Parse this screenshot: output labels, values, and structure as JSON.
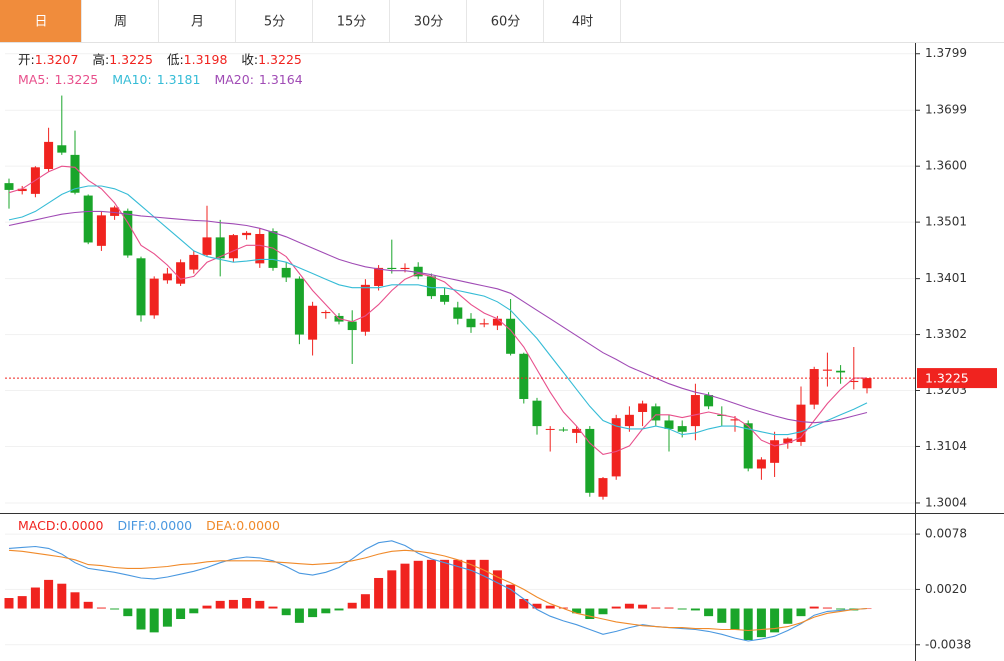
{
  "tabs": [
    "日",
    "周",
    "月",
    "5分",
    "15分",
    "30分",
    "60分",
    "4时"
  ],
  "selected_tab": 0,
  "chart_data": [
    {
      "type": "candlestick",
      "ohlc_legend": [
        {
          "label": "开:",
          "value": 1.3207
        },
        {
          "label": "高:",
          "value": 1.3225
        },
        {
          "label": "低:",
          "value": 1.3198
        },
        {
          "label": "收:",
          "value": 1.3225
        }
      ],
      "open": [
        1.357,
        1.3556,
        1.3551,
        1.3595,
        1.3637,
        1.362,
        1.3548,
        1.3459,
        1.3512,
        1.3521,
        1.3437,
        1.3336,
        1.3398,
        1.3392,
        1.3417,
        1.3443,
        1.3474,
        1.3437,
        1.3478,
        1.3428,
        1.3485,
        1.342,
        1.3401,
        1.3293,
        1.334,
        1.3335,
        1.3325,
        1.3307,
        1.3388,
        1.342,
        1.3418,
        1.3422,
        1.3405,
        1.3372,
        1.335,
        1.333,
        1.332,
        1.3318,
        1.333,
        1.3268,
        1.3185,
        1.3135,
        1.3134,
        1.3128,
        1.3135,
        1.3015,
        1.3051,
        1.314,
        1.3165,
        1.3175,
        1.315,
        1.314,
        1.314,
        1.3195,
        1.316,
        1.315,
        1.3145,
        1.3065,
        1.3075,
        1.311,
        1.3112,
        1.3178,
        1.3238,
        1.3238,
        1.3218,
        1.3207
      ],
      "high": [
        1.3578,
        1.3565,
        1.36,
        1.3668,
        1.3725,
        1.3663,
        1.355,
        1.352,
        1.353,
        1.3525,
        1.344,
        1.3405,
        1.342,
        1.3435,
        1.345,
        1.353,
        1.3505,
        1.348,
        1.3485,
        1.349,
        1.349,
        1.343,
        1.3405,
        1.336,
        1.3345,
        1.334,
        1.3345,
        1.34,
        1.3425,
        1.347,
        1.3428,
        1.343,
        1.341,
        1.3385,
        1.336,
        1.334,
        1.333,
        1.3335,
        1.3365,
        1.327,
        1.319,
        1.314,
        1.3138,
        1.314,
        1.314,
        1.305,
        1.316,
        1.3175,
        1.3185,
        1.318,
        1.316,
        1.315,
        1.3215,
        1.32,
        1.3175,
        1.3158,
        1.315,
        1.3085,
        1.313,
        1.312,
        1.321,
        1.3245,
        1.327,
        1.3248,
        1.328,
        1.3225
      ],
      "low": [
        1.3525,
        1.355,
        1.3545,
        1.359,
        1.362,
        1.355,
        1.3462,
        1.345,
        1.3505,
        1.3438,
        1.3325,
        1.333,
        1.3392,
        1.3388,
        1.341,
        1.344,
        1.3405,
        1.343,
        1.347,
        1.342,
        1.3415,
        1.3395,
        1.3285,
        1.3265,
        1.333,
        1.332,
        1.325,
        1.33,
        1.338,
        1.341,
        1.3412,
        1.34,
        1.3365,
        1.3355,
        1.332,
        1.3305,
        1.3315,
        1.331,
        1.3265,
        1.318,
        1.3125,
        1.3095,
        1.313,
        1.311,
        1.3015,
        1.301,
        1.3045,
        1.313,
        1.314,
        1.314,
        1.3095,
        1.312,
        1.3115,
        1.317,
        1.314,
        1.313,
        1.306,
        1.3045,
        1.305,
        1.31,
        1.3105,
        1.317,
        1.321,
        1.3215,
        1.3205,
        1.3198
      ],
      "close": [
        1.3558,
        1.356,
        1.3598,
        1.3643,
        1.3624,
        1.3553,
        1.3465,
        1.3513,
        1.3527,
        1.3442,
        1.3336,
        1.3401,
        1.341,
        1.343,
        1.3443,
        1.3474,
        1.3437,
        1.3478,
        1.3482,
        1.348,
        1.342,
        1.3403,
        1.3302,
        1.3353,
        1.3342,
        1.3325,
        1.331,
        1.339,
        1.342,
        1.3418,
        1.342,
        1.3405,
        1.337,
        1.336,
        1.333,
        1.3315,
        1.3322,
        1.333,
        1.3268,
        1.3188,
        1.314,
        1.3135,
        1.3133,
        1.3135,
        1.3022,
        1.3048,
        1.3154,
        1.316,
        1.318,
        1.315,
        1.3135,
        1.313,
        1.3195,
        1.3175,
        1.3158,
        1.3152,
        1.3065,
        1.3081,
        1.3115,
        1.3118,
        1.3178,
        1.3241,
        1.324,
        1.3235,
        1.322,
        1.3225
      ],
      "up_color": "#f0231f",
      "down_color": "#1aa52a",
      "series": [
        {
          "name": "MA5:",
          "color": "#e8508c",
          "legend_value": 1.3225,
          "values": [
            1.3553,
            1.356,
            1.3575,
            1.359,
            1.36,
            1.3598,
            1.3575,
            1.356,
            1.3535,
            1.35,
            1.346,
            1.3445,
            1.3425,
            1.34,
            1.3405,
            1.343,
            1.344,
            1.345,
            1.346,
            1.346,
            1.3455,
            1.344,
            1.341,
            1.338,
            1.3355,
            1.333,
            1.3325,
            1.3335,
            1.3355,
            1.338,
            1.34,
            1.341,
            1.3405,
            1.3395,
            1.3375,
            1.3355,
            1.334,
            1.333,
            1.331,
            1.328,
            1.324,
            1.32,
            1.3165,
            1.314,
            1.311,
            1.309,
            1.3095,
            1.3105,
            1.3135,
            1.316,
            1.316,
            1.3155,
            1.316,
            1.3165,
            1.316,
            1.3155,
            1.314,
            1.3115,
            1.3105,
            1.311,
            1.312,
            1.315,
            1.318,
            1.3205,
            1.3225,
            1.3225
          ]
        },
        {
          "name": "MA10:",
          "color": "#36bcd6",
          "legend_value": 1.3181,
          "values": [
            1.3505,
            1.351,
            1.352,
            1.3535,
            1.355,
            1.356,
            1.3565,
            1.3565,
            1.356,
            1.355,
            1.353,
            1.351,
            1.349,
            1.347,
            1.345,
            1.344,
            1.3435,
            1.343,
            1.3432,
            1.3435,
            1.3435,
            1.343,
            1.342,
            1.341,
            1.34,
            1.339,
            1.3385,
            1.3385,
            1.3385,
            1.339,
            1.339,
            1.339,
            1.3385,
            1.3385,
            1.338,
            1.3375,
            1.337,
            1.336,
            1.3345,
            1.332,
            1.3295,
            1.3265,
            1.3235,
            1.3205,
            1.3175,
            1.315,
            1.314,
            1.3135,
            1.3135,
            1.314,
            1.3135,
            1.3125,
            1.3128,
            1.3135,
            1.314,
            1.314,
            1.3135,
            1.313,
            1.3125,
            1.3125,
            1.313,
            1.314,
            1.315,
            1.316,
            1.317,
            1.3181
          ]
        },
        {
          "name": "MA20:",
          "color": "#a04bb5",
          "legend_value": 1.3164,
          "values": [
            1.3495,
            1.35,
            1.3505,
            1.351,
            1.3515,
            1.3518,
            1.352,
            1.352,
            1.3518,
            1.3515,
            1.3512,
            1.351,
            1.3508,
            1.3506,
            1.3504,
            1.3503,
            1.35,
            1.3498,
            1.3495,
            1.349,
            1.3483,
            1.3475,
            1.3465,
            1.3455,
            1.3445,
            1.3435,
            1.3428,
            1.3422,
            1.3418,
            1.3415,
            1.3415,
            1.3412,
            1.3408,
            1.3403,
            1.3398,
            1.3393,
            1.3388,
            1.3383,
            1.3375,
            1.336,
            1.3345,
            1.333,
            1.3315,
            1.33,
            1.3285,
            1.327,
            1.3258,
            1.3245,
            1.3235,
            1.3225,
            1.3215,
            1.3207,
            1.32,
            1.3195,
            1.3188,
            1.318,
            1.3172,
            1.3165,
            1.3158,
            1.3152,
            1.3148,
            1.3146,
            1.3148,
            1.3152,
            1.3158,
            1.3164
          ]
        }
      ],
      "ylim": [
        1.2988,
        1.3818
      ],
      "yticks": [
        1.3799,
        1.3699,
        {
          "value": 1.36,
          "label": "1.3600"
        },
        1.3501,
        1.3401,
        1.3302,
        1.3203,
        1.3104,
        1.3004
      ],
      "grid": true,
      "last_price": 1.3225,
      "last_price_color": "#f0231f"
    },
    {
      "type": "macd",
      "down_color": "#1aa52a",
      "series": [
        {
          "name": "MACD:",
          "color": "#f0231f",
          "legend_value": 0,
          "legend_label": "0.0000",
          "values": [
            0.0011,
            0.0013,
            0.0022,
            0.003,
            0.0026,
            0.0017,
            0.0007,
            0.0001,
            -0.0001,
            -0.0008,
            -0.0022,
            -0.0025,
            -0.0019,
            -0.0011,
            -0.0005,
            0.0003,
            0.0008,
            0.0009,
            0.0011,
            0.0008,
            0.0002,
            -0.0007,
            -0.0015,
            -0.0009,
            -0.0005,
            -0.0002,
            0.0006,
            0.0015,
            0.0032,
            0.004,
            0.0047,
            0.005,
            0.0051,
            0.0051,
            0.0051,
            0.0051,
            0.0051,
            0.004,
            0.0025,
            0.001,
            0.0005,
            0.0003,
            0.0001,
            -0.0005,
            -0.0011,
            -0.0006,
            0.0002,
            0.0005,
            0.0004,
            0.0001,
            0.0001,
            -0.0001,
            -0.0002,
            -0.0008,
            -0.0015,
            -0.0022,
            -0.0033,
            -0.003,
            -0.0025,
            -0.0016,
            -0.0008,
            0.0002,
            0.0001,
            -0.0001,
            -0.0002,
            0
          ]
        },
        {
          "name": "DIFF:",
          "color": "#4a98e0",
          "legend_value": 0,
          "legend_label": "0.0000",
          "values": [
            0.0063,
            0.0064,
            0.0065,
            0.0063,
            0.0057,
            0.0048,
            0.0042,
            0.004,
            0.0038,
            0.0035,
            0.0032,
            0.0031,
            0.0033,
            0.0036,
            0.0039,
            0.0043,
            0.0048,
            0.0052,
            0.0054,
            0.0053,
            0.005,
            0.0044,
            0.0037,
            0.0035,
            0.0038,
            0.0043,
            0.0052,
            0.0062,
            0.0069,
            0.0071,
            0.0066,
            0.0058,
            0.0052,
            0.0048,
            0.0044,
            0.004,
            0.0034,
            0.0027,
            0.002,
            0.001,
            -0.0001,
            -0.0008,
            -0.0013,
            -0.0017,
            -0.0022,
            -0.0027,
            -0.0024,
            -0.002,
            -0.0017,
            -0.0019,
            -0.002,
            -0.0021,
            -0.0022,
            -0.0024,
            -0.0027,
            -0.0031,
            -0.0034,
            -0.0032,
            -0.0029,
            -0.0023,
            -0.0016,
            -0.0007,
            -0.0003,
            -0.0002,
            -0.0001,
            0
          ]
        },
        {
          "name": "DEA:",
          "color": "#f08a2a",
          "legend_value": 0,
          "legend_label": "0.0000",
          "values": [
            0.0061,
            0.006,
            0.0058,
            0.0056,
            0.0054,
            0.0051,
            0.0046,
            0.0045,
            0.0043,
            0.0042,
            0.0042,
            0.0043,
            0.0044,
            0.0046,
            0.0047,
            0.0049,
            0.005,
            0.005,
            0.005,
            0.005,
            0.0049,
            0.0048,
            0.0047,
            0.0046,
            0.0047,
            0.0048,
            0.005,
            0.0053,
            0.0057,
            0.006,
            0.0061,
            0.006,
            0.0058,
            0.0055,
            0.0051,
            0.0046,
            0.004,
            0.0033,
            0.0027,
            0.002,
            0.0012,
            0.0005,
            0,
            -0.0005,
            -0.0008,
            -0.0011,
            -0.0014,
            -0.0016,
            -0.0018,
            -0.0019,
            -0.002,
            -0.002,
            -0.0021,
            -0.0021,
            -0.0022,
            -0.0022,
            -0.0023,
            -0.0022,
            -0.0021,
            -0.0019,
            -0.0015,
            -0.0009,
            -0.0005,
            -0.0003,
            -0.0001,
            0
          ]
        }
      ],
      "ylim": [
        -0.0055,
        0.0098
      ],
      "yticks": [
        0.0078,
        {
          "value": 0.002,
          "label": "0.0020"
        },
        -0.0038
      ],
      "grid": true
    }
  ]
}
